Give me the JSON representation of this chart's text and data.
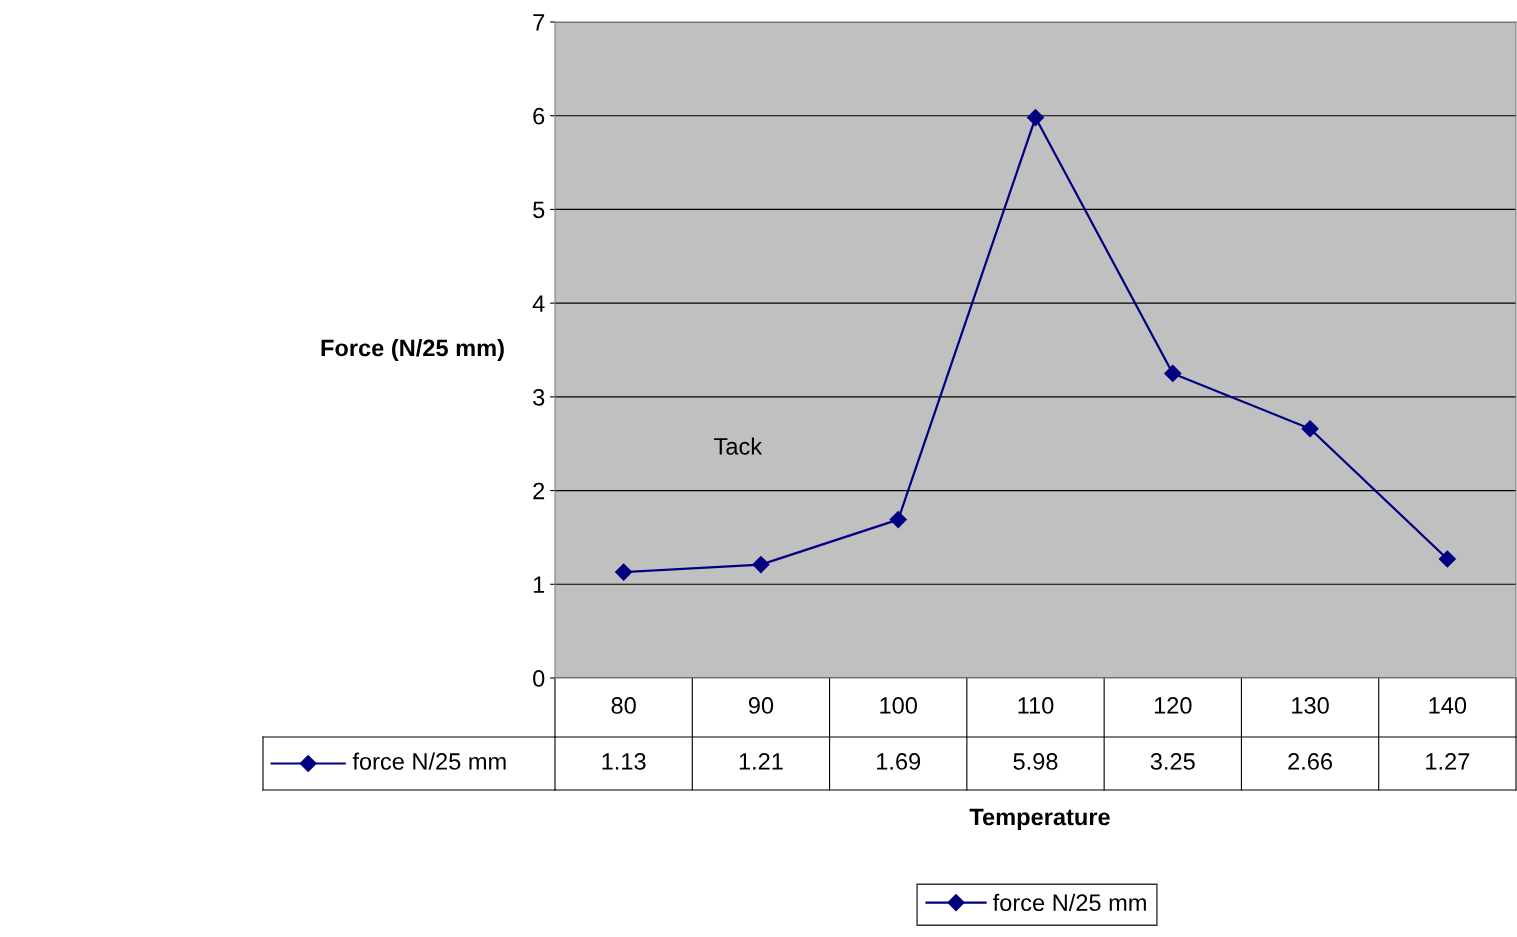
{
  "chart_data": {
    "type": "line",
    "annotations": [
      "Tack"
    ],
    "xlabel": "Temperature",
    "ylabel": "Force (N/25 mm)",
    "categories": [
      "80",
      "90",
      "100",
      "110",
      "120",
      "130",
      "140"
    ],
    "series": [
      {
        "name": "force N/25 mm",
        "color": "#000080",
        "values": [
          1.13,
          1.21,
          1.69,
          5.98,
          3.25,
          2.66,
          1.27
        ]
      }
    ],
    "ylim": [
      0,
      7
    ],
    "yticks": [
      0,
      1,
      2,
      3,
      4,
      5,
      6,
      7
    ],
    "grid": "y",
    "legend": "bottom",
    "marker": "diamond",
    "line_style": "solid",
    "data_labels": true
  }
}
